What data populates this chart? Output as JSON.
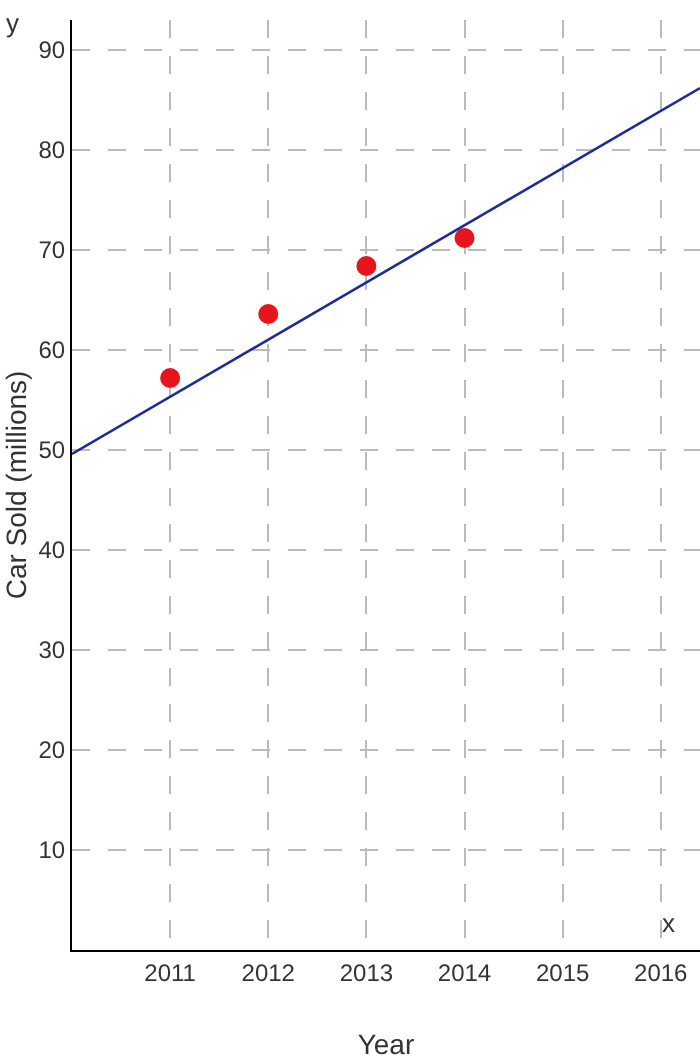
{
  "chart_data": {
    "type": "scatter",
    "xlabel": "Year",
    "ylabel": "Car Sold (millions)",
    "annotations": [
      "y",
      "x"
    ],
    "x": [
      2011,
      2012,
      2013,
      2014
    ],
    "series": [
      {
        "color": "#e8141b",
        "marker": "circle",
        "values": [
          57.2,
          63.6,
          68.4,
          71.2
        ]
      },
      {
        "type": "line",
        "color": "#1c2a9a",
        "marker": "none",
        "x": [
          2010,
          2016.4
        ],
        "values": [
          49.6,
          86.2
        ]
      }
    ],
    "xlim": [
      2010,
      2016.4
    ],
    "xticks": [
      2011,
      2012,
      2013,
      2014,
      2015,
      2016
    ],
    "ylim": [
      0,
      93
    ],
    "yticks": [
      10,
      20,
      30,
      40,
      50,
      60,
      70,
      80,
      90
    ],
    "grid": true,
    "line_style": "solid"
  }
}
